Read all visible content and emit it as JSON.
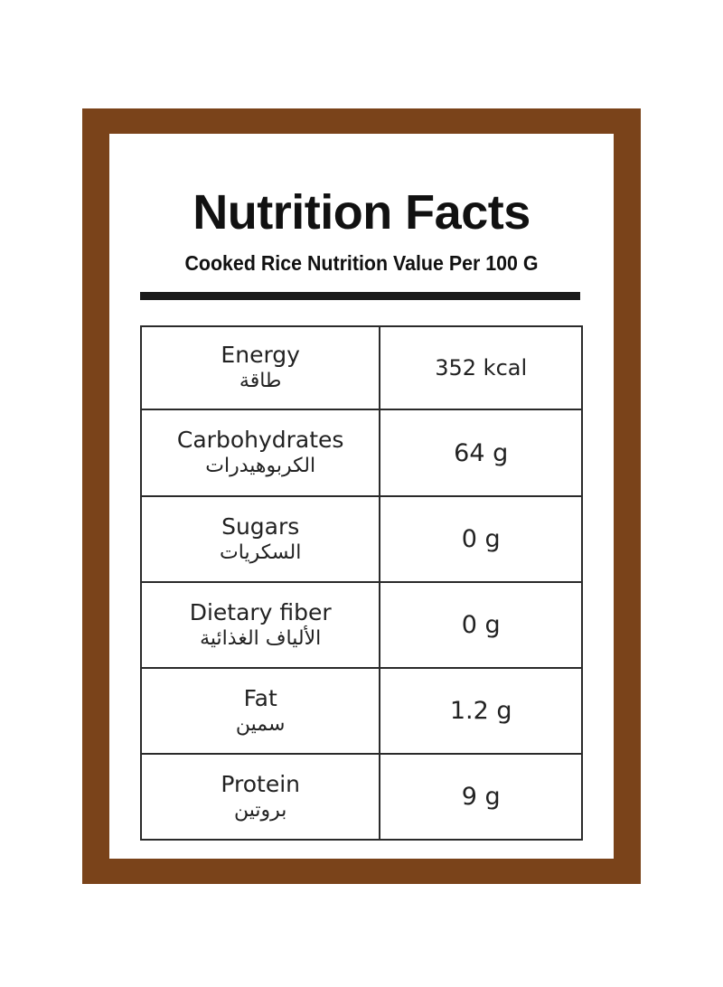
{
  "colors": {
    "frame": "#7a431a",
    "text": "#111111"
  },
  "title": "Nutrition Facts",
  "subtitle": "Cooked Rice Nutrition Value Per 100 G",
  "rows": [
    {
      "name_en": "Energy",
      "name_ar": "طاقة",
      "value": "352 kcal"
    },
    {
      "name_en": "Carbohydrates",
      "name_ar": "الكربوهيدرات",
      "value": "64 g"
    },
    {
      "name_en": "Sugars",
      "name_ar": "السكريات",
      "value": "0 g"
    },
    {
      "name_en": "Dietary fiber",
      "name_ar": "الألياف الغذائية",
      "value": "0 g"
    },
    {
      "name_en": "Fat",
      "name_ar": "سمين",
      "value": "1.2 g"
    },
    {
      "name_en": "Protein",
      "name_ar": "بروتين",
      "value": "9 g"
    }
  ]
}
